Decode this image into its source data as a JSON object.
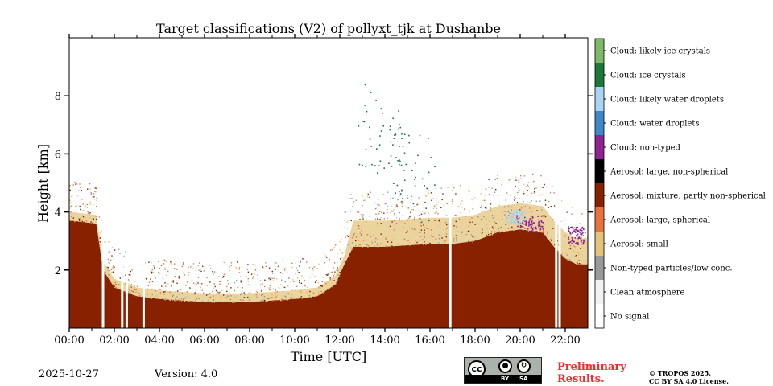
{
  "chart_data": {
    "type": "heatmap",
    "title": "Target classifications (V2) of pollyxt_tjk at Dushanbe",
    "xlabel": "Time [UTC]",
    "ylabel": "Height [km]",
    "xlim": [
      0,
      23
    ],
    "ylim": [
      0,
      10
    ],
    "x_ticks": [
      0,
      2,
      4,
      6,
      8,
      10,
      12,
      14,
      16,
      18,
      20,
      22
    ],
    "x_tick_labels": [
      "00:00",
      "02:00",
      "04:00",
      "06:00",
      "08:00",
      "10:00",
      "12:00",
      "14:00",
      "16:00",
      "18:00",
      "20:00",
      "22:00"
    ],
    "y_ticks": [
      2,
      4,
      6,
      8
    ],
    "y_tick_labels": [
      "2",
      "4",
      "6",
      "8"
    ],
    "legend_placement": "right colorbar",
    "categories": [
      {
        "label": "No signal",
        "color": "#ffffff"
      },
      {
        "label": "Clean atmosphere",
        "color": "#f2f2f2"
      },
      {
        "label": "Non-typed particles/low conc.",
        "color": "#999999"
      },
      {
        "label": "Aerosol: small",
        "color": "#e3c47b"
      },
      {
        "label": "Aerosol: large, spherical",
        "color": "#e8733f"
      },
      {
        "label": "Aerosol: mixture, partly non-spherical",
        "color": "#882100"
      },
      {
        "label": "Aerosol: large, non-spherical",
        "color": "#000000"
      },
      {
        "label": "Cloud: non-typed",
        "color": "#8f2394"
      },
      {
        "label": "Cloud: water droplets",
        "color": "#3c88c8"
      },
      {
        "label": "Cloud: likely water droplets",
        "color": "#a9d4f2"
      },
      {
        "label": "Cloud: ice crystals",
        "color": "#1a7838"
      },
      {
        "label": "Cloud: likely ice crystals",
        "color": "#7fb866"
      }
    ],
    "aerosol_layer_top_km": {
      "time_h": [
        0,
        1.2,
        1.5,
        2,
        3,
        4,
        6,
        8,
        10,
        11,
        11.8,
        12.2,
        12.6,
        14,
        16,
        17,
        18,
        19,
        20,
        21,
        21.5,
        22,
        22.5,
        23
      ],
      "height": [
        3.7,
        3.6,
        2.0,
        1.4,
        1.1,
        1.0,
        0.9,
        0.9,
        1.0,
        1.1,
        1.5,
        2.2,
        2.8,
        2.8,
        2.9,
        2.9,
        3.0,
        3.3,
        3.4,
        3.3,
        2.8,
        2.4,
        2.2,
        2.2
      ]
    },
    "cloud_features": [
      {
        "type": "Cloud: non-typed",
        "time_range": [
          19.8,
          21.0
        ],
        "height_range": [
          3.3,
          3.9
        ]
      },
      {
        "type": "Cloud: non-typed",
        "time_range": [
          22.1,
          22.8
        ],
        "height_range": [
          2.9,
          3.5
        ]
      },
      {
        "type": "Cloud: likely water droplets",
        "time_range": [
          19.4,
          20.2
        ],
        "height_range": [
          3.6,
          4.1
        ]
      },
      {
        "type": "Cloud: ice crystals",
        "time_range": [
          12.8,
          16.2
        ],
        "height_range": [
          5.6,
          8.8
        ]
      }
    ],
    "data_gaps_h": [
      1.5,
      2.35,
      2.55,
      3.3,
      16.9,
      21.6,
      21.75
    ]
  },
  "footer": {
    "date": "2025-10-27",
    "version": "Version: 4.0",
    "preliminary_line1": "Preliminary",
    "preliminary_line2": "Results.",
    "copyright_line1": "© TROPOS 2025.",
    "copyright_line2": "CC BY SA 4.0 License.",
    "cc_label": "cc",
    "by_label": "BY",
    "sa_label": "SA"
  }
}
